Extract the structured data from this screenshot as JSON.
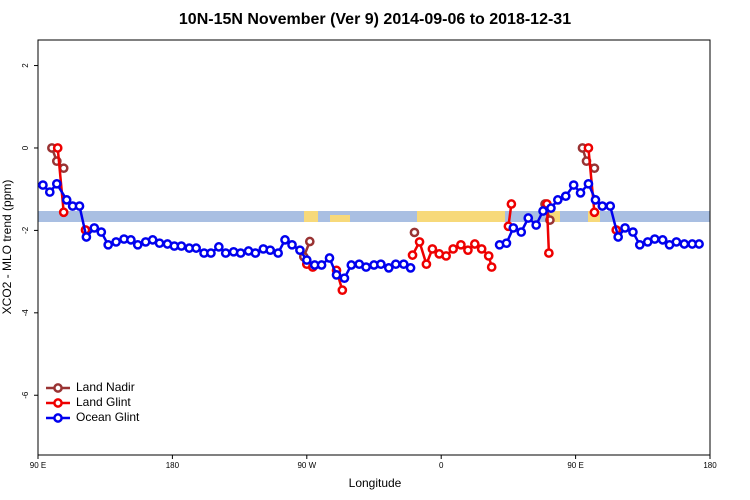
{
  "chart_data": {
    "type": "line",
    "title": "10N-15N November (Ver 9)   2014-09-06 to 2018-12-31",
    "x_label": "Longitude",
    "y_label": "XCO2 - MLO trend (ppm)",
    "xlim": [
      90,
      540
    ],
    "ylim": [
      -7.45,
      2.62
    ],
    "xticks": [
      {
        "value": 90,
        "label": "90 E"
      },
      180,
      {
        "value": 270,
        "label": "90 W"
      },
      {
        "value": 360,
        "label": "0"
      },
      {
        "value": 450,
        "label": "90 E"
      },
      {
        "value": 540,
        "label": "180"
      }
    ],
    "yticks": [
      -6,
      -4,
      -2,
      0,
      2
    ],
    "grid": false,
    "legend": "bottom-left",
    "series": [
      {
        "name": "Land Nadir",
        "color": "#993333",
        "x": [
          99.3,
          102.6,
          107.2,
          null,
          268.0,
          272.0,
          null,
          342.1,
          null,
          429.5,
          432.8,
          null,
          454.6,
          457.3,
          462.6
        ],
        "values": [
          0.0,
          -0.32,
          -0.49,
          null,
          -2.64,
          -2.27,
          null,
          -2.05,
          null,
          -1.36,
          -1.75,
          null,
          0.0,
          -0.32,
          -0.49
        ]
      },
      {
        "name": "Land Glint",
        "color": "#ee0000",
        "x": [
          103.2,
          107.2,
          null,
          121.8,
          null,
          270.0,
          274.0,
          null,
          289.9,
          293.8,
          null,
          340.8,
          345.5,
          350.1,
          354.1,
          358.7,
          363.3,
          368.0,
          373.2,
          377.9,
          382.5,
          387.1,
          391.8,
          393.8,
          null,
          405.0,
          407.0,
          null,
          430.8,
          432.1,
          null,
          458.6,
          462.6,
          null,
          477.2
        ],
        "values": [
          0.0,
          -1.56,
          null,
          -1.99,
          null,
          -2.82,
          -2.89,
          null,
          -2.97,
          -3.45,
          null,
          -2.6,
          -2.28,
          -2.82,
          -2.45,
          -2.57,
          -2.62,
          -2.45,
          -2.35,
          -2.48,
          -2.33,
          -2.45,
          -2.62,
          -2.89,
          null,
          -1.9,
          -1.36,
          null,
          -1.36,
          -2.55,
          null,
          0.0,
          -1.56,
          null,
          -1.99
        ]
      },
      {
        "name": "Ocean Glint",
        "color": "#0000ee",
        "x": [
          93.3,
          97.9,
          102.6,
          109.2,
          113.2,
          117.8,
          122.4,
          127.7,
          132.4,
          137.0,
          142.3,
          147.6,
          152.2,
          156.8,
          162.1,
          166.8,
          171.4,
          176.7,
          181.3,
          186.0,
          191.3,
          195.9,
          201.2,
          205.8,
          211.1,
          215.7,
          221.0,
          225.7,
          231.0,
          235.6,
          240.9,
          245.5,
          250.8,
          255.4,
          260.1,
          265.4,
          270.0,
          275.3,
          279.9,
          285.2,
          289.9,
          295.2,
          299.8,
          305.1,
          309.7,
          315.0,
          319.6,
          324.9,
          329.6,
          334.9,
          339.5,
          null,
          399.1,
          403.7,
          408.3,
          413.6,
          418.3,
          423.6,
          428.2,
          433.5,
          438.1,
          443.4,
          448.7,
          453.3,
          458.6,
          463.3,
          467.9,
          473.2,
          478.5,
          483.1,
          488.4,
          493.0,
          498.3,
          503.0,
          508.3,
          512.9,
          517.5,
          522.8,
          528.1,
          532.7
        ],
        "values": [
          -0.9,
          -1.07,
          -0.87,
          -1.26,
          -1.41,
          -1.41,
          -2.16,
          -1.94,
          -2.04,
          -2.35,
          -2.28,
          -2.21,
          -2.23,
          -2.35,
          -2.28,
          -2.23,
          -2.31,
          -2.33,
          -2.38,
          -2.38,
          -2.43,
          -2.43,
          -2.55,
          -2.55,
          -2.4,
          -2.55,
          -2.52,
          -2.55,
          -2.5,
          -2.55,
          -2.45,
          -2.48,
          -2.55,
          -2.23,
          -2.35,
          -2.48,
          -2.72,
          -2.84,
          -2.84,
          -2.67,
          -3.08,
          -3.16,
          -2.84,
          -2.82,
          -2.89,
          -2.84,
          -2.82,
          -2.91,
          -2.82,
          -2.82,
          -2.91,
          null,
          -2.35,
          -2.31,
          -1.94,
          -2.04,
          -1.7,
          -1.87,
          -1.53,
          -1.46,
          -1.26,
          -1.17,
          -0.9,
          -1.09,
          -0.87,
          -1.26,
          -1.41,
          -1.41,
          -2.16,
          -1.94,
          -2.04,
          -2.35,
          -2.28,
          -2.21,
          -2.23,
          -2.35,
          -2.28,
          -2.33,
          -2.33,
          -2.33
        ]
      }
    ]
  }
}
